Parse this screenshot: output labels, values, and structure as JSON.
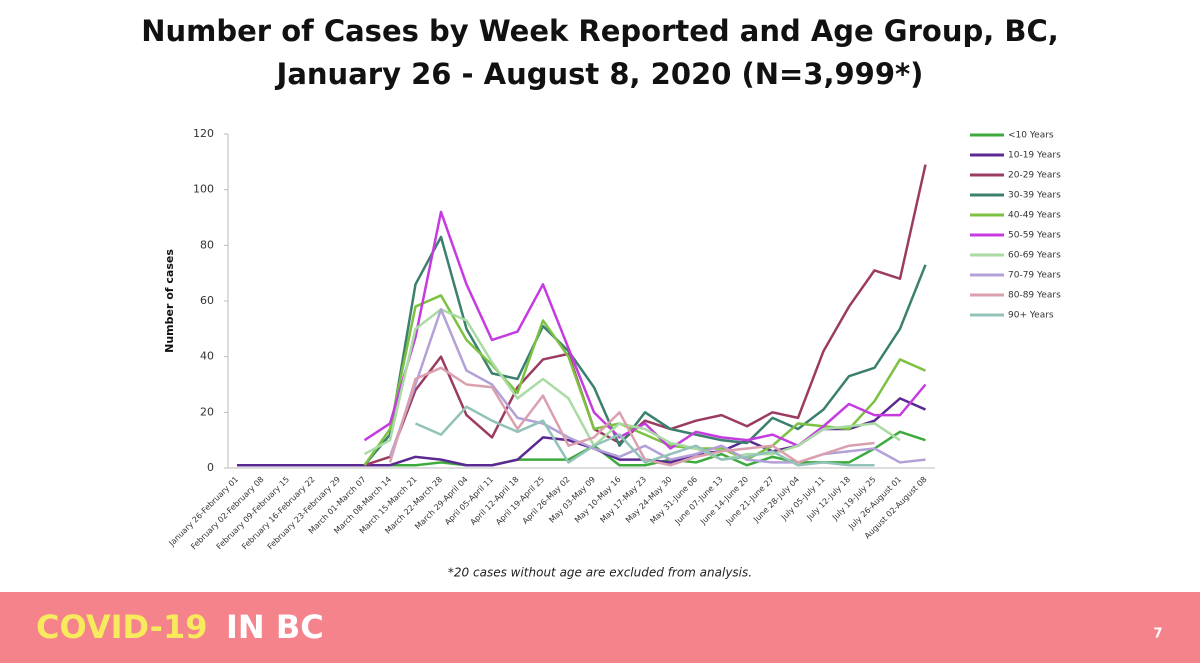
{
  "chart_data": {
    "type": "line",
    "title": "Number of Cases by Week Reported and Age Group, BC,",
    "subtitle": "January 26 - August 8, 2020 (N=3,999*)",
    "y_label": "Number of cases",
    "note": "*20 cases without age are excluded from analysis.",
    "categories": [
      "January 26-February 01",
      "February 02-February 08",
      "February 09-February 15",
      "February 16-February 22",
      "February 23-February 29",
      "March 01-March 07",
      "March 08-March 14",
      "March 15-March 21",
      "March 22-March 28",
      "March 29-April 04",
      "April 05-April 11",
      "April 12-April 18",
      "April 19-April 25",
      "April 26-May 02",
      "May 03-May 09",
      "May 10-May 16",
      "May 17-May 23",
      "May 24-May 30",
      "May 31-June 06",
      "June 07-June 13",
      "June 14-June 20",
      "June 21-June 27",
      "June 28-July 04",
      "July 05-July 11",
      "July 12-July 18",
      "July 19-July 25",
      "July 26-August 01",
      "August 02-August 08"
    ],
    "ylim": [
      0,
      120
    ],
    "yticks": [
      0,
      20,
      40,
      60,
      80,
      100,
      120
    ],
    "grid": false,
    "legend": "right",
    "series": [
      {
        "name": "<10 Years",
        "color": "#3daa3d",
        "values": [
          1,
          1,
          1,
          1,
          1,
          1,
          1,
          1,
          2,
          1,
          1,
          3,
          3,
          3,
          8,
          1,
          1,
          3,
          2,
          5,
          1,
          4,
          2,
          2,
          2,
          7,
          13,
          10
        ]
      },
      {
        "name": "10-19 Years",
        "color": "#5a2a92",
        "values": [
          1,
          1,
          1,
          1,
          1,
          1,
          1,
          4,
          3,
          1,
          1,
          3,
          11,
          10,
          7,
          3,
          3,
          2,
          5,
          6,
          10,
          6,
          8,
          14,
          14,
          17,
          25,
          21
        ]
      },
      {
        "name": "20-29 Years",
        "color": "#9c3b62",
        "values": [
          null,
          null,
          null,
          null,
          null,
          1,
          4,
          28,
          40,
          19,
          11,
          29,
          39,
          41,
          14,
          9,
          17,
          14,
          17,
          19,
          15,
          20,
          18,
          42,
          58,
          71,
          68,
          109
        ]
      },
      {
        "name": "30-39 Years",
        "color": "#3b7f6e",
        "values": [
          null,
          null,
          null,
          null,
          null,
          1,
          12,
          66,
          83,
          50,
          34,
          32,
          51,
          42,
          29,
          8,
          20,
          14,
          12,
          10,
          9,
          18,
          14,
          21,
          33,
          36,
          50,
          73
        ]
      },
      {
        "name": "40-49 Years",
        "color": "#7cc142",
        "values": [
          null,
          null,
          null,
          null,
          null,
          1,
          14,
          58,
          62,
          46,
          37,
          27,
          53,
          40,
          14,
          16,
          12,
          8,
          7,
          7,
          3,
          8,
          16,
          15,
          14,
          24,
          39,
          35
        ]
      },
      {
        "name": "50-59 Years",
        "color": "#c53be0",
        "values": [
          null,
          null,
          null,
          null,
          null,
          10,
          16,
          47,
          92,
          66,
          46,
          49,
          66,
          43,
          20,
          11,
          16,
          7,
          13,
          11,
          10,
          12,
          8,
          15,
          23,
          19,
          19,
          30
        ]
      },
      {
        "name": "60-69 Years",
        "color": "#a9dba3",
        "values": [
          null,
          null,
          null,
          null,
          null,
          5,
          10,
          50,
          57,
          53,
          38,
          25,
          32,
          25,
          8,
          16,
          14,
          9,
          7,
          3,
          5,
          5,
          8,
          14,
          15,
          16,
          10,
          null
        ]
      },
      {
        "name": "70-79 Years",
        "color": "#b3a0d8",
        "values": [
          null,
          null,
          null,
          null,
          null,
          null,
          4,
          30,
          57,
          35,
          30,
          18,
          16,
          11,
          7,
          4,
          8,
          3,
          5,
          8,
          3,
          2,
          2,
          5,
          6,
          7,
          2,
          3
        ]
      },
      {
        "name": "80-89 Years",
        "color": "#dba0ad",
        "values": [
          null,
          null,
          null,
          null,
          null,
          null,
          2,
          32,
          36,
          30,
          29,
          14,
          26,
          8,
          11,
          20,
          3,
          1,
          4,
          6,
          7,
          8,
          2,
          5,
          8,
          9,
          null,
          null
        ]
      },
      {
        "name": "90+ Years",
        "color": "#93c2b8",
        "values": [
          null,
          null,
          null,
          null,
          null,
          null,
          null,
          16,
          12,
          22,
          17,
          13,
          17,
          2,
          8,
          12,
          2,
          5,
          8,
          3,
          4,
          6,
          1,
          2,
          1,
          1,
          null,
          null
        ]
      }
    ]
  },
  "footer": {
    "brand": "COVID-19",
    "brand_suffix": "IN BC",
    "page_number": "7"
  }
}
